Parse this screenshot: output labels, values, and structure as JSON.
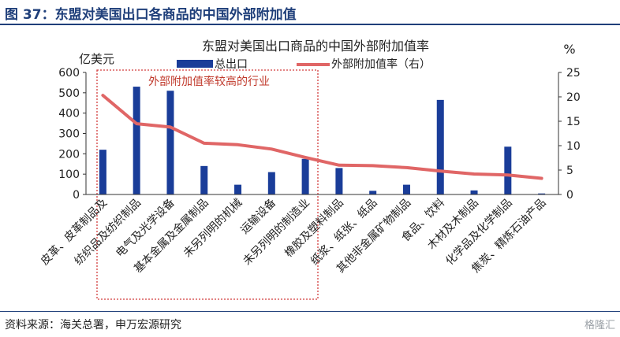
{
  "figure_title": "图 37：东盟对美国出口各商品的中国外部附加值",
  "source": "资料来源：海关总署，申万宏源研究",
  "watermark": "格隆汇",
  "chart_data": {
    "type": "bar",
    "title": "东盟对美国出口商品的中国外部附加值率",
    "left_unit": "亿美元",
    "right_unit": "%",
    "annotation": "外部附加值率较高的行业",
    "categories": [
      "皮革、皮革制品及",
      "纺织品及纺织制品",
      "电气及光学设备",
      "基本金属及金属制品",
      "未另列明的机械",
      "运输设备",
      "未另列明的制造业",
      "橡胶及塑料制品",
      "纸浆、纸张、纸品",
      "其他非金属矿物制品",
      "食品、饮料",
      "木材及木制品",
      "化学品及化学制品",
      "焦炭、精炼石油产品"
    ],
    "series": [
      {
        "name": "总出口",
        "axis": "left",
        "type": "bar",
        "color": "#1a3d99",
        "values": [
          220,
          530,
          510,
          140,
          48,
          110,
          175,
          130,
          18,
          48,
          465,
          20,
          235,
          5
        ]
      },
      {
        "name": "外部附加值率（右）",
        "axis": "right",
        "type": "line",
        "color": "#e06666",
        "values": [
          20.3,
          14.5,
          13.8,
          10.5,
          10.2,
          9.3,
          7.6,
          6.0,
          5.9,
          5.5,
          4.8,
          4.2,
          4.0,
          3.3
        ]
      }
    ],
    "ylim_left": [
      0,
      600
    ],
    "yticks_left": [
      "0",
      "100",
      "200",
      "300",
      "400",
      "500",
      "600"
    ],
    "ylim_right": [
      0,
      25
    ],
    "yticks_right": [
      "0",
      "5",
      "10",
      "15",
      "20",
      "25"
    ]
  }
}
